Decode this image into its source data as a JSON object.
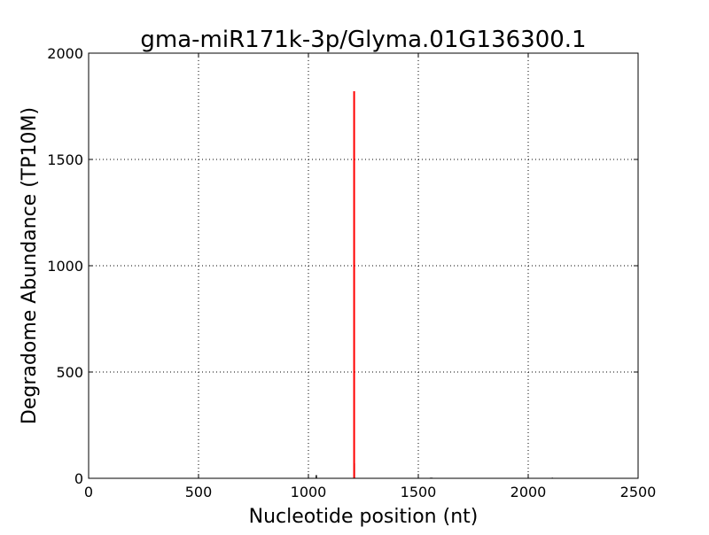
{
  "chart_data": {
    "type": "line",
    "title": "gma-miR171k-3p/Glyma.01G136300.1",
    "xlabel": "Nucleotide position (nt)",
    "ylabel": "Degradome Abundance (TP10M)",
    "xlim": [
      0,
      2500
    ],
    "ylim": [
      0,
      2000
    ],
    "xticks": [
      0,
      500,
      1000,
      1500,
      2000,
      2500
    ],
    "yticks": [
      0,
      500,
      1000,
      1500,
      2000
    ],
    "grid": true,
    "series": [
      {
        "color": "#000000",
        "points": [
          [
            1036,
            15
          ],
          [
            1209,
            70
          ],
          [
            1556,
            3
          ],
          [
            1562,
            3
          ],
          [
            1880,
            2
          ],
          [
            2110,
            3
          ]
        ]
      },
      {
        "color": "#ff0000",
        "points": [
          [
            1208,
            1821
          ]
        ]
      }
    ]
  }
}
